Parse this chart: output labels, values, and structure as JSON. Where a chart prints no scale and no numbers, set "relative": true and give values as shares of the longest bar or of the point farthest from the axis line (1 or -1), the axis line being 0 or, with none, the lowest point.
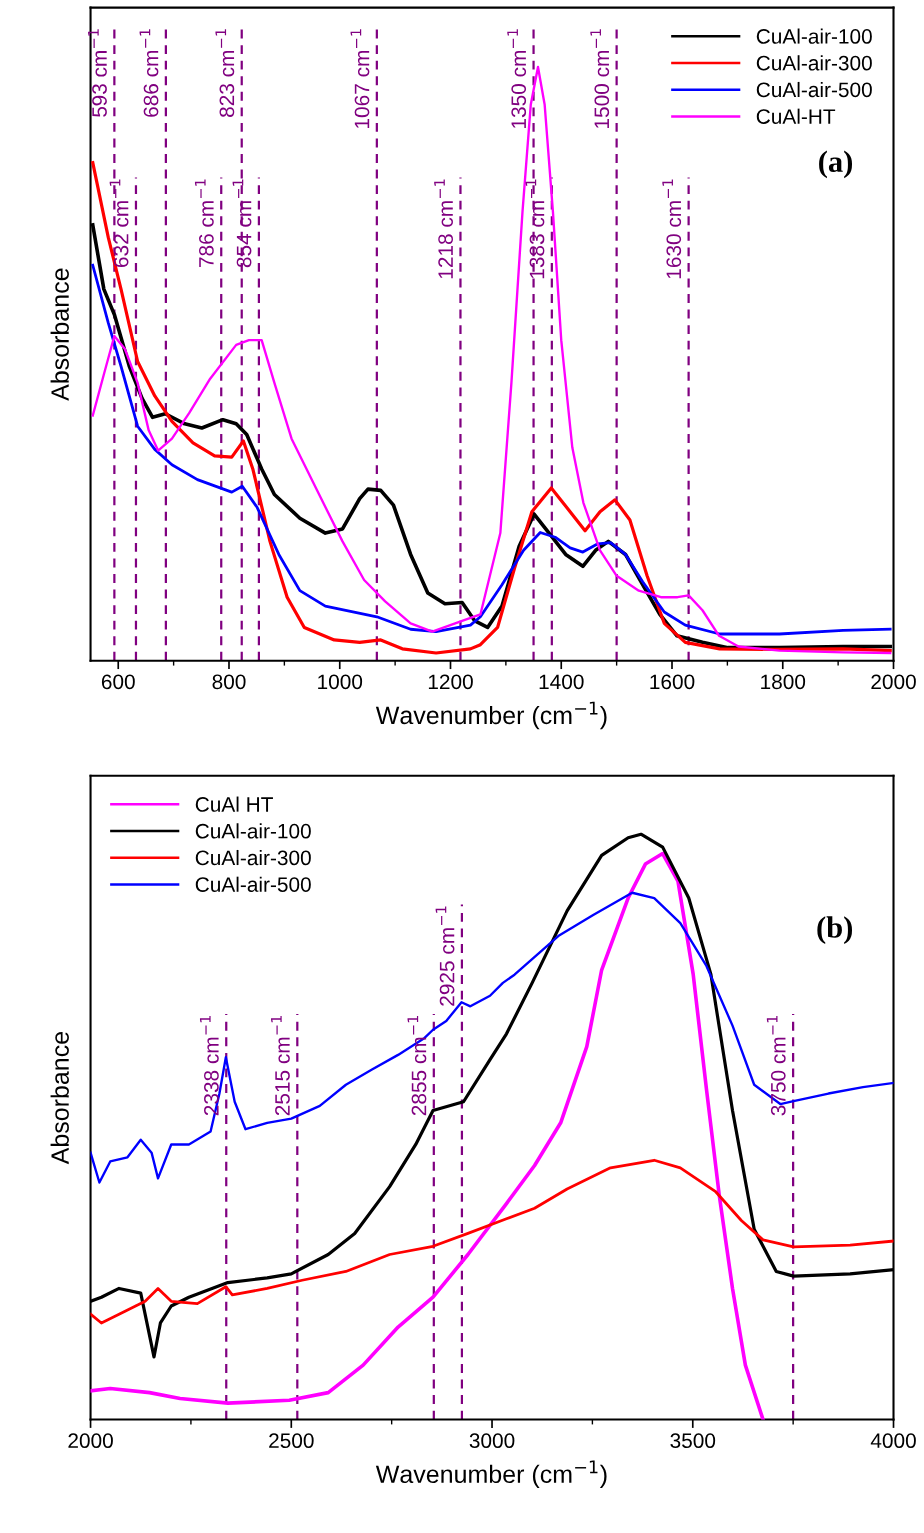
{
  "chart_data": [
    {
      "type": "line",
      "relative": true,
      "xlabel": "Wavenumber (cm$^{−1}$)",
      "ylabel": "Absorbance",
      "xlim": [
        550,
        2000
      ],
      "xticks": [
        600,
        800,
        1000,
        1200,
        1400,
        1600,
        1800,
        2000
      ],
      "legend": "top right",
      "grid": false,
      "annotations": [
        "(a)"
      ],
      "series": [
        {
          "name": "CuAl-air-100",
          "color": "#000000",
          "x": [
            554,
            574,
            593,
            620,
            643,
            662,
            685,
            720,
            751,
            789,
            813,
            832,
            859,
            882,
            928,
            974,
            1005,
            1036,
            1051,
            1074,
            1097,
            1128,
            1159,
            1190,
            1221,
            1244,
            1267,
            1293,
            1324,
            1351,
            1378,
            1408,
            1439,
            1462,
            1485,
            1516,
            1547,
            1578,
            1609,
            1655,
            1701,
            1794,
            1909,
            1994
          ],
          "values": [
            0.734,
            0.626,
            0.583,
            0.496,
            0.442,
            0.41,
            0.416,
            0.399,
            0.392,
            0.406,
            0.399,
            0.381,
            0.323,
            0.28,
            0.24,
            0.215,
            0.222,
            0.273,
            0.289,
            0.287,
            0.262,
            0.179,
            0.114,
            0.096,
            0.098,
            0.067,
            0.056,
            0.092,
            0.193,
            0.247,
            0.215,
            0.179,
            0.159,
            0.186,
            0.201,
            0.179,
            0.128,
            0.078,
            0.042,
            0.031,
            0.022,
            0.022,
            0.024,
            0.024
          ]
        },
        {
          "name": "CuAl-air-300",
          "color": "#ff0000",
          "x": [
            554,
            582,
            605,
            635,
            666,
            697,
            735,
            774,
            805,
            826,
            843,
            874,
            905,
            936,
            990,
            1036,
            1074,
            1113,
            1174,
            1236,
            1254,
            1285,
            1316,
            1347,
            1382,
            1416,
            1443,
            1470,
            1497,
            1524,
            1555,
            1586,
            1624,
            1686,
            1794,
            1909,
            1994
          ],
          "values": [
            0.839,
            0.713,
            0.626,
            0.504,
            0.446,
            0.403,
            0.367,
            0.345,
            0.343,
            0.37,
            0.323,
            0.201,
            0.107,
            0.056,
            0.035,
            0.031,
            0.035,
            0.02,
            0.013,
            0.02,
            0.027,
            0.056,
            0.157,
            0.251,
            0.291,
            0.251,
            0.219,
            0.251,
            0.271,
            0.237,
            0.143,
            0.063,
            0.031,
            0.02,
            0.019,
            0.02,
            0.017
          ]
        },
        {
          "name": "CuAl-air-500",
          "color": "#0000ff",
          "x": [
            554,
            582,
            605,
            635,
            666,
            697,
            743,
            805,
            824,
            851,
            890,
            928,
            974,
            1067,
            1128,
            1174,
            1236,
            1254,
            1293,
            1332,
            1362,
            1389,
            1416,
            1439,
            1466,
            1489,
            1516,
            1547,
            1586,
            1624,
            1686,
            1794,
            1909,
            1994
          ],
          "values": [
            0.666,
            0.569,
            0.496,
            0.395,
            0.356,
            0.33,
            0.305,
            0.284,
            0.294,
            0.258,
            0.179,
            0.118,
            0.092,
            0.074,
            0.053,
            0.049,
            0.06,
            0.074,
            0.128,
            0.186,
            0.216,
            0.208,
            0.19,
            0.183,
            0.197,
            0.199,
            0.179,
            0.133,
            0.082,
            0.06,
            0.045,
            0.045,
            0.051,
            0.053
          ]
        },
        {
          "name": "CuAl-HT",
          "color": "#ff00ff",
          "x": [
            554,
            574,
            593,
            612,
            635,
            655,
            672,
            697,
            728,
            766,
            813,
            836,
            859,
            882,
            913,
            959,
            1005,
            1044,
            1082,
            1128,
            1167,
            1221,
            1254,
            1290,
            1310,
            1330,
            1345,
            1358,
            1370,
            1385,
            1400,
            1420,
            1440,
            1470,
            1500,
            1540,
            1580,
            1610,
            1630,
            1655,
            1685,
            1720,
            1794,
            1909,
            1994
          ],
          "values": [
            0.413,
            0.482,
            0.547,
            0.525,
            0.468,
            0.388,
            0.354,
            0.374,
            0.417,
            0.475,
            0.532,
            0.54,
            0.54,
            0.468,
            0.374,
            0.287,
            0.201,
            0.136,
            0.1,
            0.063,
            0.049,
            0.067,
            0.078,
            0.215,
            0.468,
            0.756,
            0.937,
            1.0,
            0.937,
            0.756,
            0.54,
            0.359,
            0.266,
            0.186,
            0.143,
            0.118,
            0.107,
            0.107,
            0.11,
            0.085,
            0.042,
            0.024,
            0.017,
            0.014,
            0.013
          ]
        }
      ],
      "ref_lines": [
        {
          "axis": "x",
          "value": 593,
          "label": "593 cm$^{−1}$",
          "color": "#800080",
          "line_style": "dashed"
        },
        {
          "axis": "x",
          "value": 632,
          "label": "632 cm$^{−1}$",
          "color": "#800080",
          "line_style": "dashed"
        },
        {
          "axis": "x",
          "value": 686,
          "label": "686 cm$^{−1}$",
          "color": "#800080",
          "line_style": "dashed"
        },
        {
          "axis": "x",
          "value": 786,
          "label": "786 cm$^{−1}$",
          "color": "#800080",
          "line_style": "dashed"
        },
        {
          "axis": "x",
          "value": 823,
          "label": "823 cm$^{−1}$",
          "color": "#800080",
          "line_style": "dashed"
        },
        {
          "axis": "x",
          "value": 854,
          "label": "854 cm$^{−1}$",
          "color": "#800080",
          "line_style": "dashed"
        },
        {
          "axis": "x",
          "value": 1067,
          "label": "1067 cm$^{−1}$",
          "color": "#800080",
          "line_style": "dashed"
        },
        {
          "axis": "x",
          "value": 1218,
          "label": "1218 cm$^{−1}$",
          "color": "#800080",
          "line_style": "dashed"
        },
        {
          "axis": "x",
          "value": 1350,
          "label": "1350 cm$^{−1}$",
          "color": "#800080",
          "line_style": "dashed"
        },
        {
          "axis": "x",
          "value": 1383,
          "label": "1383 cm$^{−1}$",
          "color": "#800080",
          "line_style": "dashed"
        },
        {
          "axis": "x",
          "value": 1500,
          "label": "1500 cm$^{−1}$",
          "color": "#800080",
          "line_style": "dashed"
        },
        {
          "axis": "x",
          "value": 1630,
          "label": "1630 cm$^{−1}$",
          "color": "#800080",
          "line_style": "dashed"
        }
      ]
    },
    {
      "type": "line",
      "relative": true,
      "xlabel": "Wavenumber (cm$^{−1}$)",
      "ylabel": "Absorbance",
      "xlim": [
        2000,
        4000
      ],
      "xticks": [
        2000,
        2500,
        3000,
        3500,
        4000
      ],
      "legend": "top left",
      "grid": false,
      "annotations": [
        "(b)"
      ],
      "series": [
        {
          "name": "CuAl HT",
          "color": "#ff00ff",
          "x": [
            2000,
            2049,
            2147,
            2223,
            2342,
            2495,
            2592,
            2679,
            2766,
            2853,
            2940,
            3036,
            3106,
            3171,
            3236,
            3273,
            3339,
            3382,
            3425,
            3463,
            3501,
            3534,
            3566,
            3599,
            3631,
            3675
          ],
          "values": [
            0.049,
            0.053,
            0.046,
            0.036,
            0.028,
            0.033,
            0.046,
            0.093,
            0.158,
            0.209,
            0.282,
            0.369,
            0.434,
            0.507,
            0.637,
            0.768,
            0.891,
            0.949,
            0.967,
            0.92,
            0.761,
            0.565,
            0.383,
            0.224,
            0.093,
            0.0
          ]
        },
        {
          "name": "CuAl-air-100",
          "color": "#000000",
          "x": [
            2000,
            2027,
            2071,
            2125,
            2158,
            2174,
            2201,
            2245,
            2342,
            2440,
            2500,
            2592,
            2658,
            2745,
            2810,
            2853,
            2929,
            2995,
            3036,
            3100,
            3187,
            3273,
            3339,
            3371,
            3425,
            3490,
            3545,
            3599,
            3653,
            3708,
            3751,
            3892,
            4000
          ],
          "values": [
            0.202,
            0.209,
            0.224,
            0.216,
            0.107,
            0.165,
            0.194,
            0.209,
            0.234,
            0.242,
            0.249,
            0.282,
            0.318,
            0.398,
            0.47,
            0.528,
            0.543,
            0.615,
            0.659,
            0.746,
            0.869,
            0.964,
            0.994,
            1.0,
            0.978,
            0.891,
            0.761,
            0.528,
            0.325,
            0.253,
            0.245,
            0.249,
            0.256
          ]
        },
        {
          "name": "CuAl-air-300",
          "color": "#ff0000",
          "x": [
            2000,
            2027,
            2071,
            2136,
            2168,
            2201,
            2266,
            2337,
            2353,
            2440,
            2527,
            2636,
            2745,
            2853,
            2940,
            3036,
            3106,
            3187,
            3295,
            3404,
            3469,
            3556,
            3621,
            3675,
            3751,
            3892,
            4000
          ],
          "values": [
            0.18,
            0.165,
            0.18,
            0.202,
            0.224,
            0.202,
            0.198,
            0.227,
            0.213,
            0.224,
            0.238,
            0.253,
            0.282,
            0.296,
            0.318,
            0.343,
            0.361,
            0.394,
            0.43,
            0.443,
            0.43,
            0.39,
            0.34,
            0.307,
            0.295,
            0.298,
            0.305
          ]
        },
        {
          "name": "CuAl-air-500",
          "color": "#0000ff",
          "x": [
            2000,
            2022,
            2049,
            2092,
            2125,
            2152,
            2168,
            2201,
            2245,
            2299,
            2321,
            2337,
            2359,
            2386,
            2440,
            2500,
            2571,
            2636,
            2701,
            2766,
            2832,
            2853,
            2886,
            2924,
            2946,
            2995,
            3027,
            3056,
            3165,
            3252,
            3349,
            3404,
            3469,
            3534,
            3599,
            3653,
            3718,
            3751,
            3838,
            3924,
            4000
          ],
          "values": [
            0.456,
            0.405,
            0.441,
            0.448,
            0.478,
            0.456,
            0.412,
            0.47,
            0.47,
            0.492,
            0.557,
            0.619,
            0.543,
            0.496,
            0.507,
            0.514,
            0.536,
            0.572,
            0.598,
            0.623,
            0.652,
            0.666,
            0.681,
            0.713,
            0.706,
            0.724,
            0.746,
            0.76,
            0.826,
            0.862,
            0.9,
            0.891,
            0.848,
            0.775,
            0.673,
            0.572,
            0.539,
            0.544,
            0.557,
            0.568,
            0.575
          ]
        }
      ],
      "ref_lines": [
        {
          "axis": "x",
          "value": 2338,
          "label": "2338 cm$^{−1}$",
          "color": "#800080",
          "line_style": "dashed"
        },
        {
          "axis": "x",
          "value": 2515,
          "label": "2515 cm$^{−1}$",
          "color": "#800080",
          "line_style": "dashed"
        },
        {
          "axis": "x",
          "value": 2855,
          "label": "2855 cm$^{−1}$",
          "color": "#800080",
          "line_style": "dashed"
        },
        {
          "axis": "x",
          "value": 2925,
          "label": "2925 cm$^{−1}$",
          "color": "#800080",
          "line_style": "dashed"
        },
        {
          "axis": "x",
          "value": 3750,
          "label": "3750 cm$^{−1}$",
          "color": "#800080",
          "line_style": "dashed"
        }
      ]
    }
  ]
}
